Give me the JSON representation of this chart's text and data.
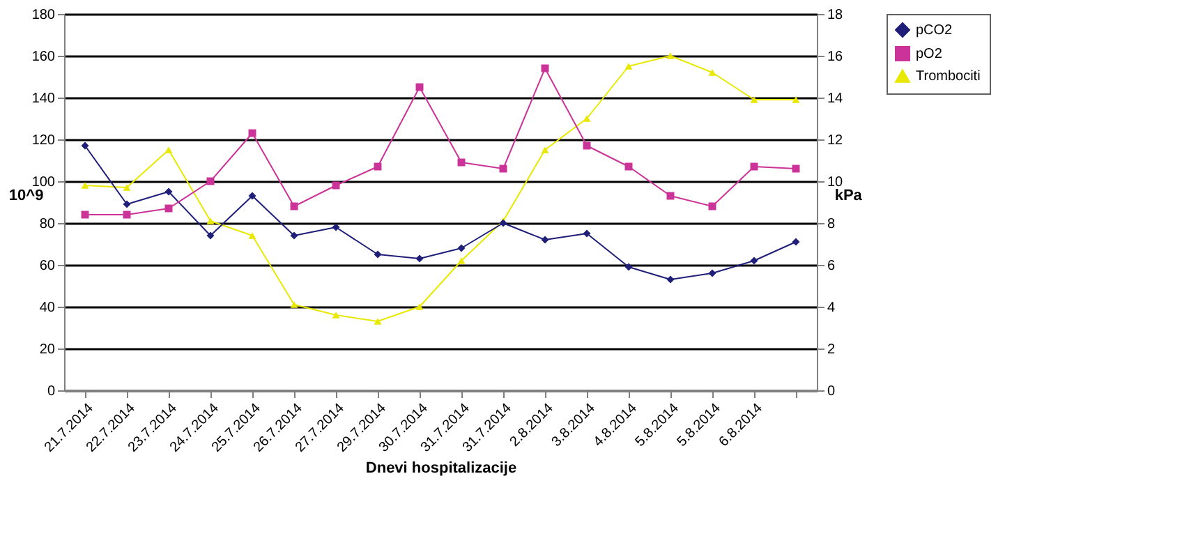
{
  "chart_data": {
    "type": "line",
    "xlabel": "Dnevi hospitalizacije",
    "ylabel": "10^9",
    "y2label": "kPa",
    "categories": [
      "21.7.2014",
      "22.7.2014",
      "23.7.2014",
      "24.7.2014",
      "25.7.2014",
      "26.7.2014",
      "27.7.2014",
      "29.7.2014",
      "30.7.2014",
      "31.7.2014",
      "31.7.2014",
      "2.8.2014",
      "3.8.2014",
      "4.8.2014",
      "5.8.2014",
      "5.8.2014",
      "6.8.2014",
      null
    ],
    "series": [
      {
        "name": "pCO2",
        "color": "#1f1f7a",
        "axis": "y2",
        "marker": "diamond",
        "values": [
          11.7,
          8.9,
          9.5,
          7.4,
          9.3,
          7.4,
          7.8,
          6.5,
          6.3,
          6.8,
          8.0,
          7.2,
          7.5,
          5.9,
          5.3,
          5.6,
          6.2,
          7.1
        ]
      },
      {
        "name": "pO2",
        "color": "#cc3399",
        "axis": "y2",
        "marker": "square",
        "values": [
          8.4,
          8.4,
          8.7,
          10.0,
          12.3,
          8.8,
          9.8,
          10.7,
          14.5,
          10.9,
          10.6,
          15.4,
          11.7,
          10.7,
          9.3,
          8.8,
          10.7,
          10.6
        ]
      },
      {
        "name": "Trombociti",
        "color": "#e8e800",
        "marker": "triangle",
        "values": [
          98,
          97,
          115,
          81,
          74,
          41,
          36,
          33,
          40,
          62,
          81,
          115,
          130,
          155,
          160,
          152,
          139,
          139
        ]
      }
    ],
    "ylim": [
      0,
      180
    ],
    "yticks": [
      0,
      20,
      40,
      60,
      80,
      100,
      120,
      140,
      160,
      180
    ],
    "y2lim": [
      0,
      18
    ],
    "y2ticks": [
      0,
      2,
      4,
      6,
      8,
      10,
      12,
      14,
      16,
      18
    ],
    "grid": "y",
    "legend": "right",
    "line_style": "solid"
  }
}
